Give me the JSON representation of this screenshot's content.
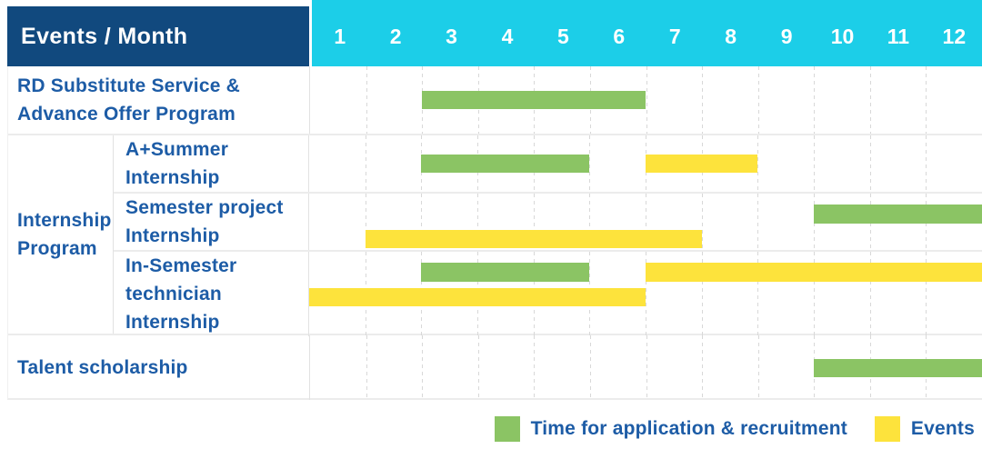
{
  "colors": {
    "navy": "#11497E",
    "cyan": "#1CCEE8",
    "green": "#8BC464",
    "yellow": "#FDE33C",
    "label_blue": "#1D5CA6"
  },
  "header": {
    "title": "Events / Month",
    "months": [
      "1",
      "2",
      "3",
      "4",
      "5",
      "6",
      "7",
      "8",
      "9",
      "10",
      "11",
      "12"
    ]
  },
  "legend": [
    {
      "key": "application",
      "label": "Time for application & recruitment",
      "color": "#8BC464"
    },
    {
      "key": "events",
      "label": "Events",
      "color": "#FDE33C"
    }
  ],
  "chart_data": {
    "type": "bar",
    "subtype": "gantt-month-timeline",
    "title": "Events / Month",
    "x_axis": {
      "unit": "month",
      "ticks": [
        1,
        2,
        3,
        4,
        5,
        6,
        7,
        8,
        9,
        10,
        11,
        12
      ],
      "range": [
        1,
        12
      ]
    },
    "group_label_lines": [
      "Internship",
      "Program"
    ],
    "rows": [
      {
        "id": "rd-substitute-advance-offer",
        "group": null,
        "label_lines": [
          "RD Substitute Service &",
          "Advance Offer Program"
        ],
        "bars": [
          {
            "series": "application",
            "start_month": 3,
            "end_month": 6,
            "line": "center"
          }
        ]
      },
      {
        "id": "a-plus-summer-internship",
        "group": "Internship Program",
        "label_lines": [
          "A+Summer",
          "Internship"
        ],
        "bars": [
          {
            "series": "application",
            "start_month": 3,
            "end_month": 5,
            "line": "center"
          },
          {
            "series": "events",
            "start_month": 7,
            "end_month": 8,
            "line": "center"
          }
        ]
      },
      {
        "id": "semester-project-internship",
        "group": "Internship Program",
        "label_lines": [
          "Semester project",
          "Internship"
        ],
        "bars": [
          {
            "series": "application",
            "start_month": 10,
            "end_month": 12,
            "line": "upper"
          },
          {
            "series": "events",
            "start_month": 2,
            "end_month": 7,
            "line": "lower"
          }
        ]
      },
      {
        "id": "in-semester-technician-internship",
        "group": "Internship Program",
        "label_lines": [
          "In-Semester",
          "technician Internship"
        ],
        "bars": [
          {
            "series": "application",
            "start_month": 3,
            "end_month": 5,
            "line": "upper"
          },
          {
            "series": "events",
            "start_month": 7,
            "end_month": 12,
            "line": "upper"
          },
          {
            "series": "events",
            "start_month": 1,
            "end_month": 6,
            "line": "lower"
          }
        ]
      },
      {
        "id": "talent-scholarship",
        "group": null,
        "label_lines": [
          "Talent scholarship"
        ],
        "bars": [
          {
            "series": "application",
            "start_month": 10,
            "end_month": 12,
            "line": "center"
          }
        ]
      }
    ]
  }
}
